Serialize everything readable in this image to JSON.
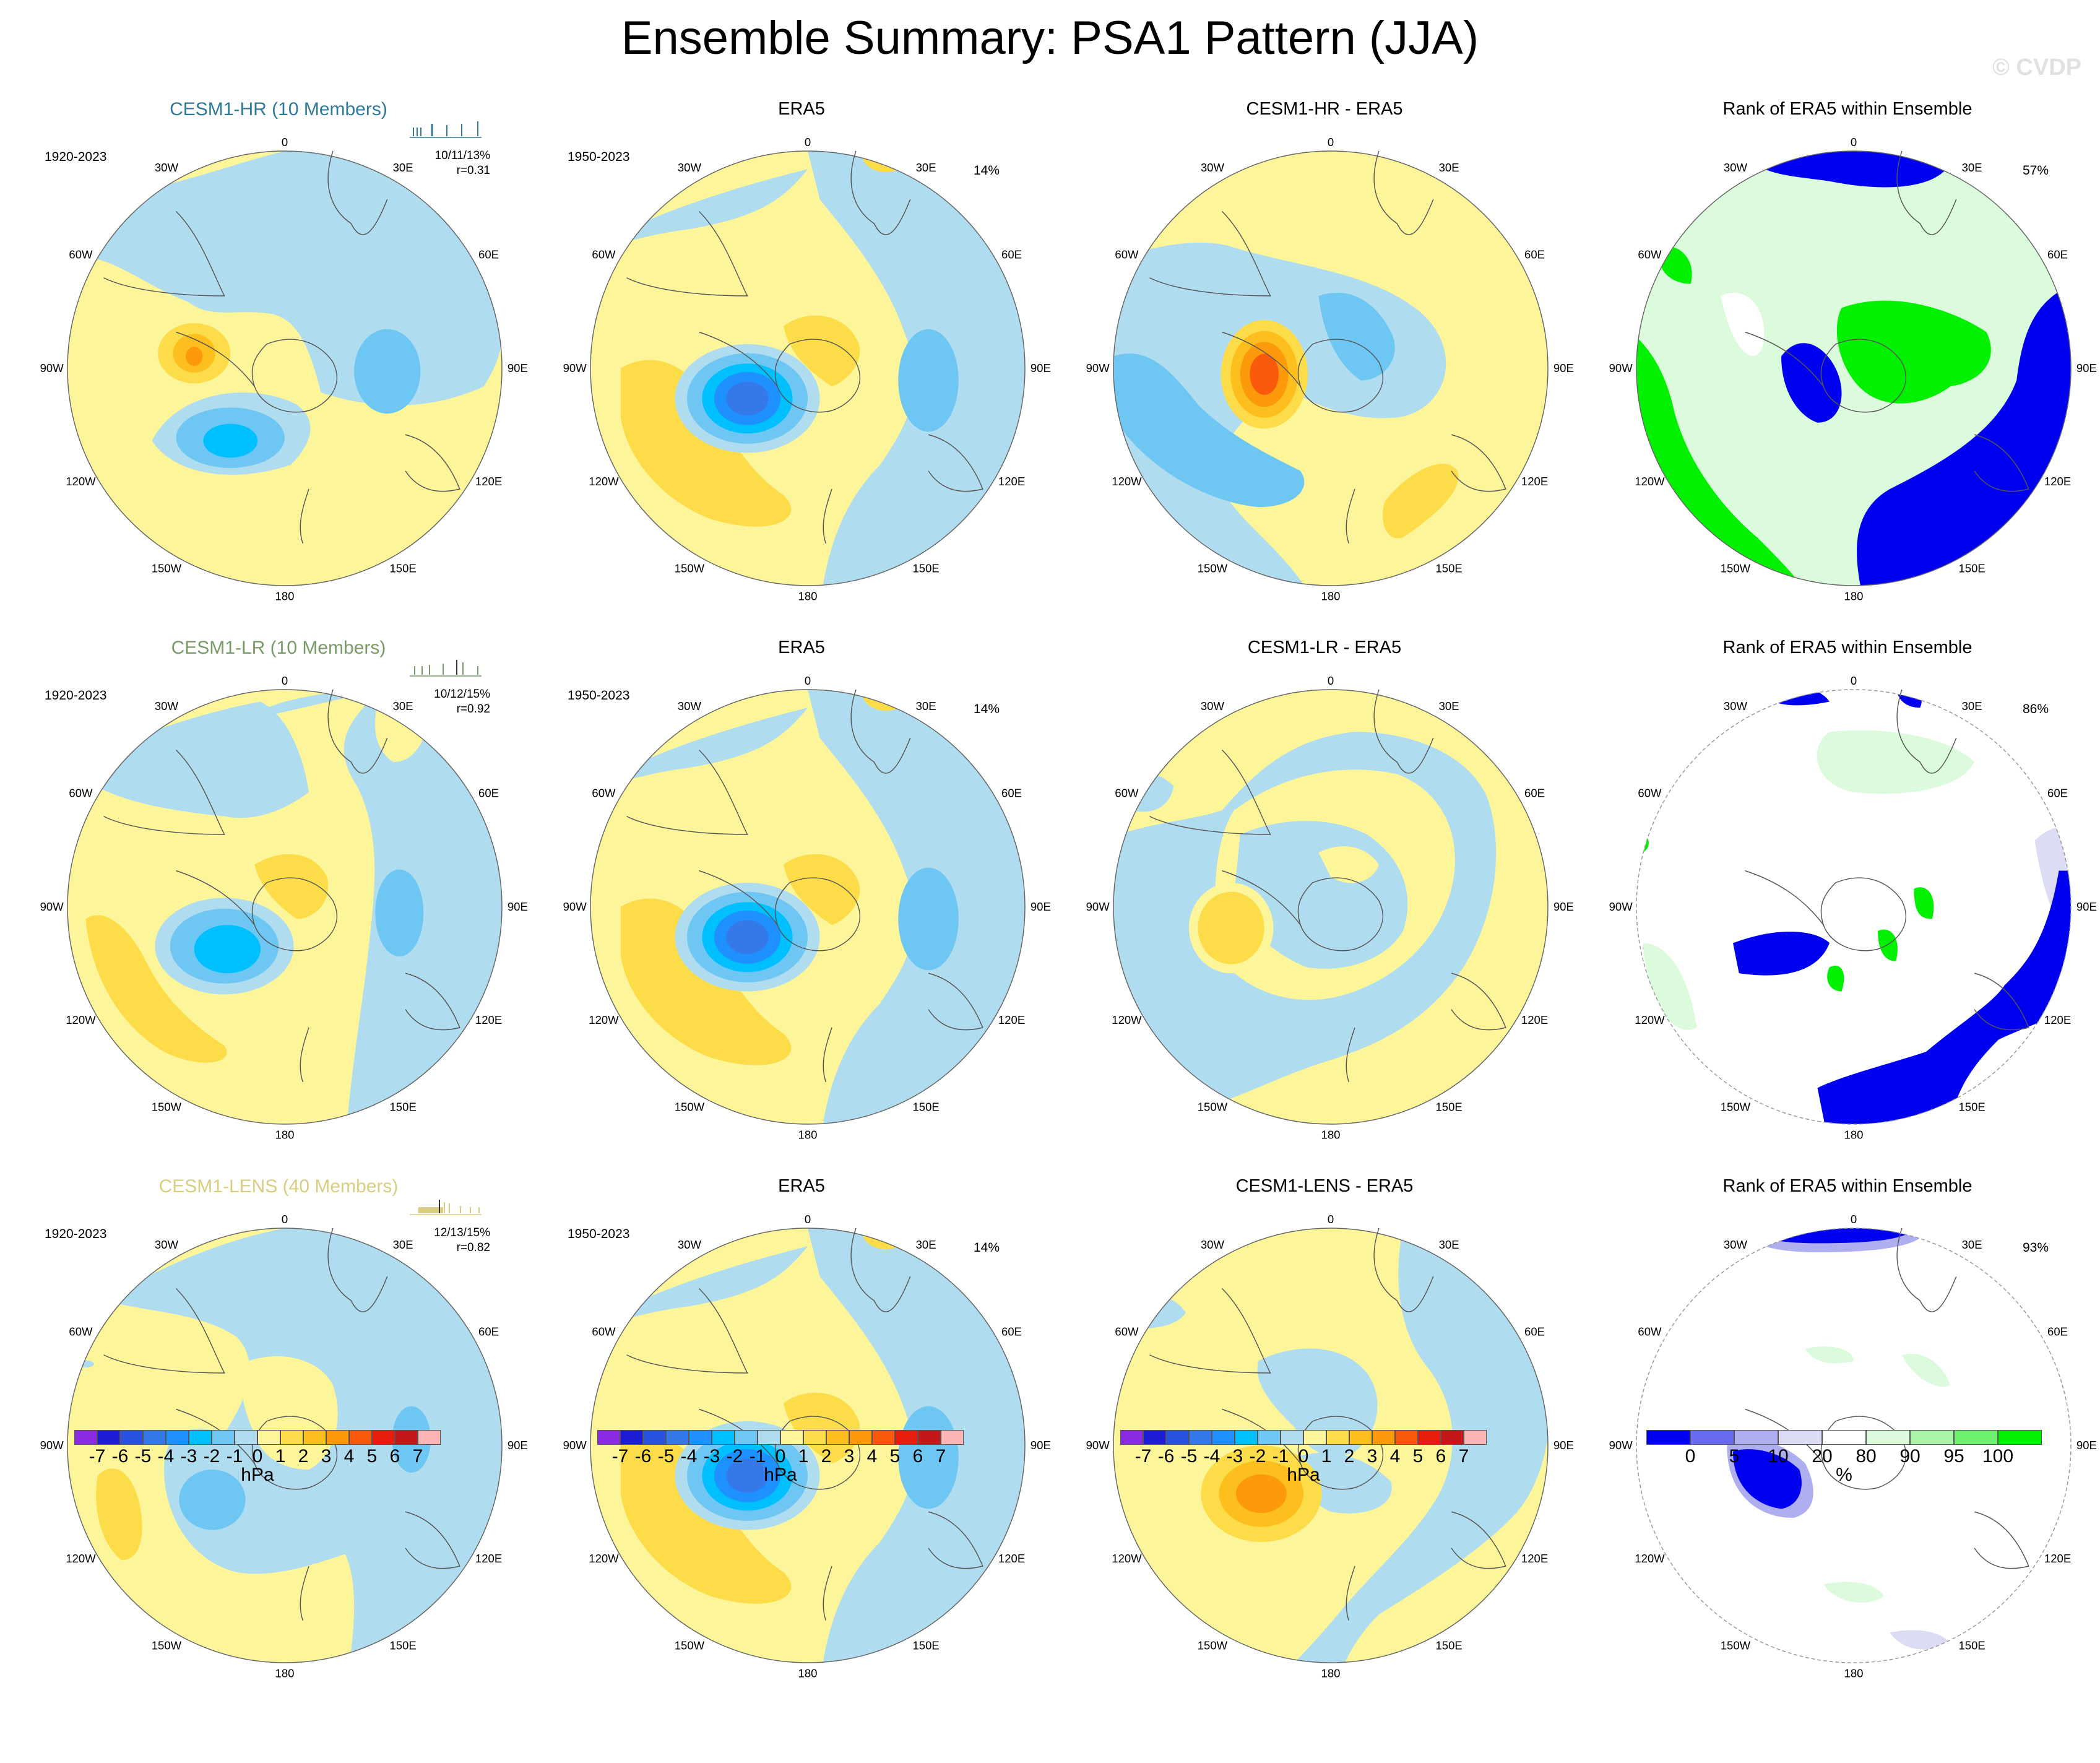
{
  "title": "Ensemble Summary: PSA1 Pattern (JJA)",
  "watermark": "© CVDP",
  "longitude_labels": [
    "0",
    "30E",
    "60E",
    "90E",
    "120E",
    "150E",
    "180",
    "150W",
    "120W",
    "90W",
    "60W",
    "30W"
  ],
  "colors": {
    "model_hr": "#2f7a99",
    "model_lr": "#7a9a68",
    "model_lens": "#d8cd80",
    "land_outline": "#555555",
    "rim": "#666666"
  },
  "rows": [
    {
      "model": {
        "title": "CESM1-HR (10 Members)",
        "years": "1920-2023",
        "stats": "10/11/13%",
        "corr": "r=0.31"
      },
      "era5": {
        "title": "ERA5",
        "years": "1950-2023",
        "pct": "14%"
      },
      "diff": {
        "title": "CESM1-HR - ERA5"
      },
      "rank": {
        "title": "Rank of ERA5 within Ensemble",
        "pct": "57%"
      }
    },
    {
      "model": {
        "title": "CESM1-LR (10 Members)",
        "years": "1920-2023",
        "stats": "10/12/15%",
        "corr": "r=0.92"
      },
      "era5": {
        "title": "ERA5",
        "years": "1950-2023",
        "pct": "14%"
      },
      "diff": {
        "title": "CESM1-LR - ERA5"
      },
      "rank": {
        "title": "Rank of ERA5 within Ensemble",
        "pct": "86%"
      }
    },
    {
      "model": {
        "title": "CESM1-LENS (40 Members)",
        "years": "1920-2023",
        "stats": "12/13/15%",
        "corr": "r=0.82"
      },
      "era5": {
        "title": "ERA5",
        "years": "1950-2023",
        "pct": "14%"
      },
      "diff": {
        "title": "CESM1-LENS - ERA5"
      },
      "rank": {
        "title": "Rank of ERA5 within Ensemble",
        "pct": "93%"
      }
    }
  ],
  "colorbars": {
    "hpa": {
      "unit": "hPa",
      "labels": [
        "-7",
        "-6",
        "-5",
        "-4",
        "-3",
        "-2",
        "-1",
        "0",
        "1",
        "2",
        "3",
        "4",
        "5",
        "6",
        "7"
      ],
      "colors": [
        "#8a2be2",
        "#1c1cd6",
        "#2a52e0",
        "#3579e8",
        "#1e90ff",
        "#00bfff",
        "#6ec6f2",
        "#b0dcef",
        "#fdf59a",
        "#fddc4a",
        "#fdbf1e",
        "#fc9a0c",
        "#fa5a0c",
        "#e81c0c",
        "#c41818",
        "#fcb4b4"
      ]
    },
    "pct": {
      "unit": "%",
      "labels": [
        "0",
        "5",
        "10",
        "20",
        "80",
        "90",
        "95",
        "100"
      ],
      "colors": [
        "#0000f0",
        "#6b6bf0",
        "#aeaef0",
        "#dcdcf5",
        "#ffffff",
        "#dcfadc",
        "#aaf5aa",
        "#6ef06e",
        "#00f000"
      ]
    }
  }
}
